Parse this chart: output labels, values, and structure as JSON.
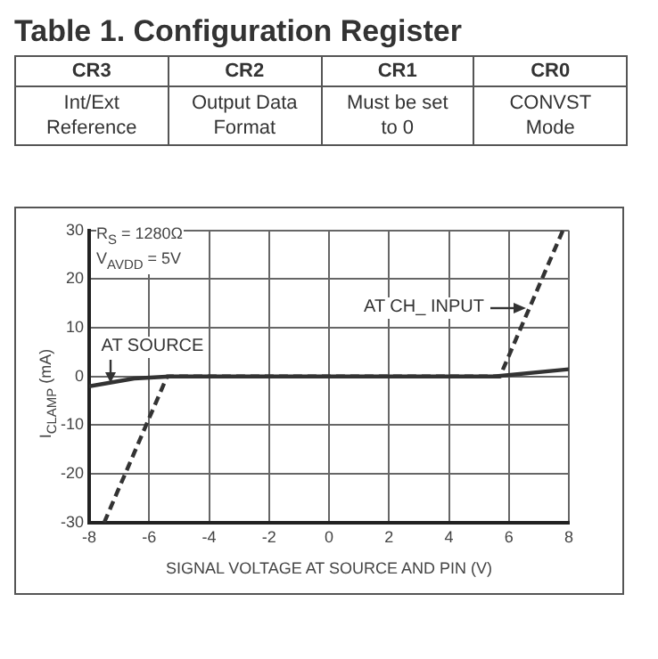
{
  "chart_data": [
    {
      "type": "other",
      "title": "Table 1. Configuration Register",
      "annotations": [
        "CR3",
        "CR2",
        "CR1",
        "CR0",
        "Int/Ext Reference",
        "Output Data Format",
        "Must be set to 0",
        "CONVST Mode"
      ]
    },
    {
      "type": "line",
      "xlabel": "SIGNAL VOLTAGE AT SOURCE AND PIN (V)",
      "ylabel": "I$_{CLAMP}$ (mA)",
      "annotations": [
        "R$_{S}$ = 1280Ω",
        "V$_{AVDD}$ = 5V",
        {
          "text": "AT SOURCE",
          "x": -7.3,
          "y": -1.2
        },
        {
          "text": "AT CH_ INPUT",
          "x": 6.6,
          "y": 14
        }
      ],
      "xlim": [
        -8,
        8
      ],
      "xticks": [
        -8,
        -6,
        -4,
        -2,
        0,
        2,
        4,
        6,
        8
      ],
      "ylim": [
        -30,
        30
      ],
      "yticks": [
        -30,
        -20,
        -10,
        0,
        10,
        20,
        30
      ],
      "grid": true,
      "legend": false,
      "marker": "none",
      "series": [
        {
          "color": "#333333",
          "line_style": "solid",
          "x": [
            -8,
            -6.5,
            -5.3,
            5.5,
            8
          ],
          "values": [
            -2,
            -0.4,
            0,
            0,
            1.5
          ]
        },
        {
          "color": "#333333",
          "line_style": "dashed",
          "x": [
            -7.5,
            -5.4,
            5.7,
            7.8
          ],
          "values": [
            -30,
            0,
            0,
            30
          ]
        }
      ]
    }
  ]
}
